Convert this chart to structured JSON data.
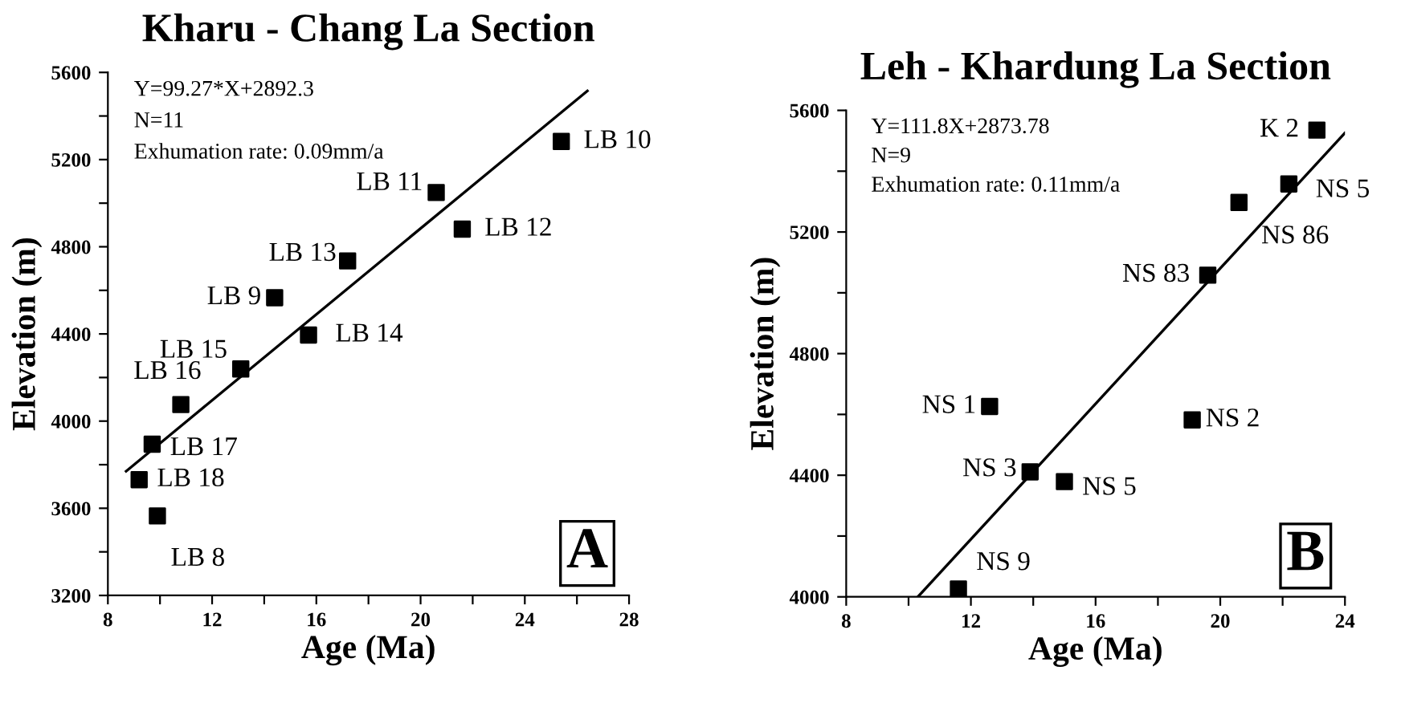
{
  "chart_data": [
    {
      "type": "scatter",
      "title": "Kharu - Chang La Section",
      "xlabel": "Age (Ma)",
      "ylabel": "Elevation (m)",
      "xlim": [
        8,
        28
      ],
      "ylim": [
        3200,
        5600
      ],
      "xticks": [
        8,
        {
          "value": 10,
          "label": null
        },
        12,
        {
          "value": 14,
          "label": null
        },
        16,
        {
          "value": 18,
          "label": null
        },
        20,
        {
          "value": 22,
          "label": null
        },
        24,
        {
          "value": 26,
          "label": null
        },
        28
      ],
      "yticks": [
        3200,
        {
          "value": 3400,
          "label": null
        },
        3600,
        {
          "value": 3800,
          "label": null
        },
        4000,
        {
          "value": 4200,
          "label": null
        },
        4400,
        {
          "value": 4600,
          "label": null
        },
        4800,
        {
          "value": 5000,
          "label": null
        },
        5200,
        {
          "value": 5400,
          "label": null
        },
        5600
      ],
      "series": [
        {
          "marker": "square",
          "color": "#000000",
          "x": [
            25.4,
            20.6,
            21.6,
            17.2,
            14.4,
            15.7,
            13.1,
            10.8,
            9.7,
            9.2,
            9.9
          ],
          "values": [
            5283,
            5049,
            4881,
            4735,
            4566,
            4395,
            4239,
            4076,
            3894,
            3731,
            3565
          ]
        },
        {
          "type": "line",
          "marker": "none",
          "color": "#000000",
          "x": [
            8.7,
            26.4
          ],
          "values": [
            3770,
            5515
          ]
        }
      ],
      "annotations": [
        "Y=99.27*X+2892.3",
        "N=11",
        "Exhumation rate: 0.09mm/a",
        {
          "text": "LB 10",
          "x": 25.4,
          "y": 5283
        },
        {
          "text": "LB 11",
          "x": 20.6,
          "y": 5049
        },
        {
          "text": "LB 12",
          "x": 21.6,
          "y": 4881
        },
        {
          "text": "LB 13",
          "x": 17.2,
          "y": 4735
        },
        {
          "text": "LB 9",
          "x": 14.4,
          "y": 4566
        },
        {
          "text": "LB 14",
          "x": 15.7,
          "y": 4395
        },
        {
          "text": "LB 15",
          "x": 13.1,
          "y": 4239
        },
        {
          "text": "LB 16",
          "x": 10.8,
          "y": 4076
        },
        {
          "text": "LB 17",
          "x": 9.7,
          "y": 3894
        },
        {
          "text": "LB 18",
          "x": 9.2,
          "y": 3731
        },
        {
          "text": "LB 8",
          "x": 9.9,
          "y": 3565
        },
        "A"
      ]
    },
    {
      "type": "scatter",
      "title": "Leh - Khardung La Section",
      "xlabel": "Age (Ma)",
      "ylabel": "Elevation (m)",
      "xlim": [
        8,
        24
      ],
      "ylim": [
        4000,
        5600
      ],
      "xticks": [
        8,
        {
          "value": 10,
          "label": null
        },
        12,
        {
          "value": 14,
          "label": null
        },
        16,
        {
          "value": 18,
          "label": null
        },
        20,
        {
          "value": 22,
          "label": null
        },
        24
      ],
      "yticks": [
        4000,
        {
          "value": 4200,
          "label": null
        },
        4400,
        {
          "value": 4600,
          "label": null
        },
        4800,
        {
          "value": 5000,
          "label": null
        },
        5200,
        {
          "value": 5400,
          "label": null
        },
        5600
      ],
      "series": [
        {
          "marker": "square",
          "color": "#000000",
          "x": [
            23.1,
            22.2,
            20.6,
            19.6,
            12.6,
            19.1,
            13.9,
            15.0,
            11.6
          ],
          "values": [
            5535,
            5358,
            5297,
            5058,
            4626,
            4582,
            4411,
            4379,
            4026
          ]
        },
        {
          "type": "line",
          "marker": "none",
          "color": "#000000",
          "x": [
            10.3,
            24.0
          ],
          "values": [
            4000,
            5526
          ]
        }
      ],
      "annotations": [
        "Y=111.8X+2873.78",
        "N=9",
        "Exhumation rate: 0.11mm/a",
        {
          "text": "K 2",
          "x": 23.1,
          "y": 5535
        },
        {
          "text": "NS 5",
          "x": 22.2,
          "y": 5358
        },
        {
          "text": "NS 86",
          "x": 20.6,
          "y": 5297
        },
        {
          "text": "NS 83",
          "x": 19.6,
          "y": 5058
        },
        {
          "text": "NS 1",
          "x": 12.6,
          "y": 4626
        },
        {
          "text": "NS 2",
          "x": 19.1,
          "y": 4582
        },
        {
          "text": "NS 3",
          "x": 13.9,
          "y": 4411
        },
        {
          "text": "NS 5",
          "x": 15.0,
          "y": 4379
        },
        {
          "text": "NS 9",
          "x": 11.6,
          "y": 4026
        },
        "B"
      ]
    }
  ]
}
